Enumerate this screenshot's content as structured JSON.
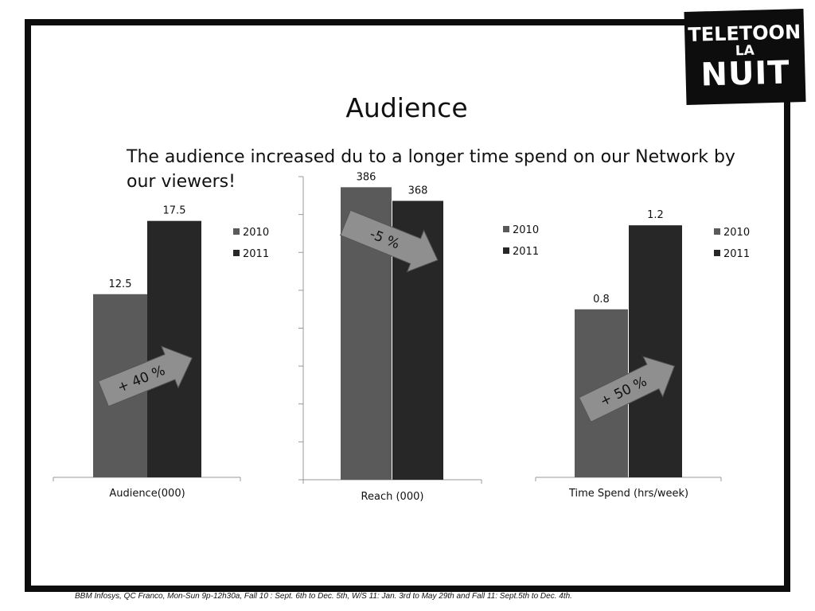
{
  "title": "Audience",
  "subtitle": "The audience increased du to a longer time spend on our Network by our viewers!",
  "footnote": "BBM Infosys, QC Franco, Mon-Sun 9p-12h30a, Fall 10 : Sept. 6th to Dec. 5th, W/S 11: Jan. 3rd to May 29th and Fall 11: Sept.5th to Dec. 4th.",
  "logo": {
    "line1": "TELETOON",
    "line2": "LA",
    "line3": "NUIT"
  },
  "colors": {
    "series_2010": "#5a5a5a",
    "series_2011": "#272727",
    "arrow": "#8f8f8f",
    "frame": "#0d0d0d"
  },
  "chart_data": [
    {
      "type": "bar",
      "categories": [
        "Audience(000)"
      ],
      "series": [
        {
          "name": "2010",
          "values": [
            12.5
          ]
        },
        {
          "name": "2011",
          "values": [
            17.5
          ]
        }
      ],
      "data_labels": [
        "12.5",
        "17.5"
      ],
      "annotation": "+ 40 %",
      "ylim": [
        0,
        21.5
      ],
      "legend": "right",
      "grid": false
    },
    {
      "type": "bar",
      "categories": [
        "Reach (000)"
      ],
      "series": [
        {
          "name": "2010",
          "values": [
            386
          ]
        },
        {
          "name": "2011",
          "values": [
            368
          ]
        }
      ],
      "data_labels": [
        "386",
        "368"
      ],
      "annotation": "-5 %",
      "ylim": [
        0,
        400
      ],
      "yticks": [
        0,
        50,
        100,
        150,
        200,
        250,
        300,
        350,
        400
      ],
      "legend": "right",
      "grid": false
    },
    {
      "type": "bar",
      "categories": [
        "Time Spend (hrs/week)"
      ],
      "series": [
        {
          "name": "2010",
          "values": [
            0.8
          ]
        },
        {
          "name": "2011",
          "values": [
            1.2
          ]
        }
      ],
      "data_labels": [
        "0.8",
        "1.2"
      ],
      "annotation": "+ 50 %",
      "ylim": [
        0,
        1.5
      ],
      "legend": "right",
      "grid": false
    }
  ]
}
